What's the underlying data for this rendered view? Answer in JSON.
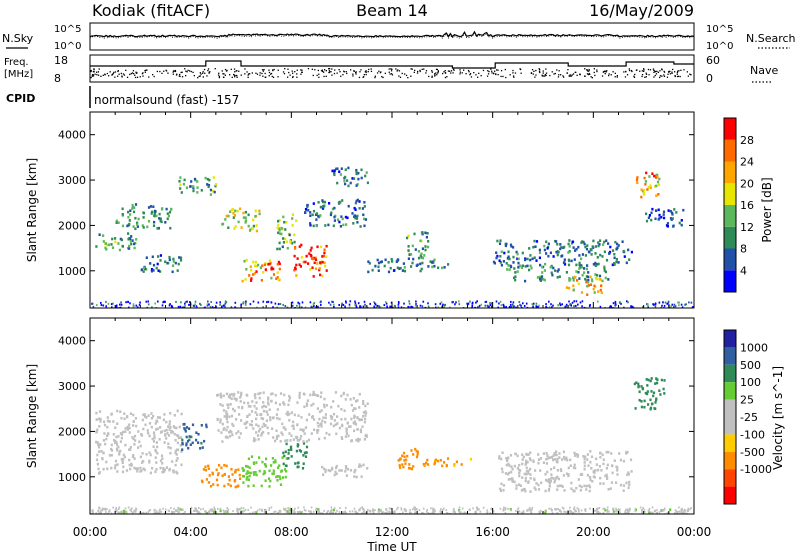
{
  "header": {
    "title_left": "Kodiak (fitACF)",
    "title_center": "Beam 14",
    "title_right": "16/May/2009"
  },
  "strip_nsky": {
    "left_label": "N.Sky",
    "right_label": "N.Search",
    "y_ticks": [
      "10^5",
      "10^0"
    ],
    "y_ticks_right": [
      "10^5",
      "10^0"
    ]
  },
  "strip_freq": {
    "left_label_1": "Freq.",
    "left_label_2": "[MHz]",
    "right_label": "Nave",
    "y_ticks": [
      "18",
      "8"
    ],
    "y_ticks_right": [
      "60",
      "0"
    ]
  },
  "cpid": {
    "label": "CPID",
    "value": "normalsound (fast) -157"
  },
  "colors": {
    "power_scale": [
      "#0000ff",
      "#2050a8",
      "#2e8b57",
      "#5cb85c",
      "#e6e600",
      "#ffa500",
      "#ff6a00",
      "#ff0000"
    ],
    "velocity_scale": [
      "#2020a0",
      "#3060a0",
      "#2e8b57",
      "#66cc33",
      "#c0c0c0",
      "#c0c0c0",
      "#ffcc00",
      "#ff8c00",
      "#ff4500",
      "#ff0000"
    ]
  },
  "chart_data": [
    {
      "type": "heatmap",
      "name_hint": "power",
      "xlabel": "",
      "ylabel": "Slant Range [km]",
      "xlim": [
        0,
        24
      ],
      "ylim": [
        180,
        4500
      ],
      "y_ticks": [
        1000,
        2000,
        3000,
        4000
      ],
      "colorbar": {
        "label": "Power [dB]",
        "range": [
          0,
          32
        ],
        "ticks": [
          4,
          8,
          12,
          16,
          20,
          24,
          28
        ]
      },
      "features": [
        {
          "t0": 0.2,
          "t1": 1.8,
          "r0": 1450,
          "r1": 1850,
          "value": 12
        },
        {
          "t0": 1.0,
          "t1": 3.2,
          "r0": 1950,
          "r1": 2500,
          "value": 10
        },
        {
          "t0": 2.0,
          "t1": 3.6,
          "r0": 1000,
          "r1": 1400,
          "value": 8
        },
        {
          "t0": 3.5,
          "t1": 5.0,
          "r0": 2700,
          "r1": 3100,
          "value": 12
        },
        {
          "t0": 5.2,
          "t1": 6.7,
          "r0": 1900,
          "r1": 2400,
          "value": 16
        },
        {
          "t0": 6.0,
          "t1": 7.6,
          "r0": 800,
          "r1": 1300,
          "value": 24
        },
        {
          "t0": 7.4,
          "t1": 8.2,
          "r0": 1500,
          "r1": 2300,
          "value": 14
        },
        {
          "t0": 8.0,
          "t1": 9.4,
          "r0": 900,
          "r1": 1600,
          "value": 28
        },
        {
          "t0": 8.5,
          "t1": 11.0,
          "r0": 2000,
          "r1": 2600,
          "value": 8
        },
        {
          "t0": 9.5,
          "t1": 11.0,
          "r0": 2900,
          "r1": 3300,
          "value": 8
        },
        {
          "t0": 11.0,
          "t1": 14.2,
          "r0": 1000,
          "r1": 1300,
          "value": 8
        },
        {
          "t0": 12.5,
          "t1": 13.4,
          "r0": 1300,
          "r1": 1900,
          "value": 12
        },
        {
          "t0": 16.0,
          "t1": 21.5,
          "r0": 1150,
          "r1": 1700,
          "value": 8
        },
        {
          "t0": 16.5,
          "t1": 20.6,
          "r0": 800,
          "r1": 1150,
          "value": 10
        },
        {
          "t0": 18.8,
          "t1": 20.3,
          "r0": 500,
          "r1": 900,
          "value": 20
        },
        {
          "t0": 21.6,
          "t1": 22.6,
          "r0": 2600,
          "r1": 3200,
          "value": 22
        },
        {
          "t0": 22.0,
          "t1": 23.6,
          "r0": 2000,
          "r1": 2400,
          "value": 6
        }
      ]
    },
    {
      "type": "heatmap",
      "name_hint": "velocity",
      "xlabel": "Time UT",
      "ylabel": "Slant Range [km]",
      "xlim": [
        0,
        24
      ],
      "ylim": [
        180,
        4500
      ],
      "x_ticks": [
        "00:00",
        "04:00",
        "08:00",
        "12:00",
        "16:00",
        "20:00",
        "00:00"
      ],
      "y_ticks": [
        1000,
        2000,
        3000,
        4000
      ],
      "colorbar": {
        "label": "Velocity [m s^-1]",
        "ticks": [
          "1000",
          "500",
          "100",
          "25",
          "-25",
          "-100",
          "-500",
          "-1000"
        ]
      },
      "features": [
        {
          "t0": 0.2,
          "t1": 3.6,
          "r0": 1100,
          "r1": 2500,
          "value": 0
        },
        {
          "t0": 3.6,
          "t1": 4.6,
          "r0": 1600,
          "r1": 2200,
          "value": 600
        },
        {
          "t0": 4.4,
          "t1": 6.0,
          "r0": 800,
          "r1": 1300,
          "value": -150
        },
        {
          "t0": 6.0,
          "t1": 7.8,
          "r0": 800,
          "r1": 1500,
          "value": 60
        },
        {
          "t0": 7.6,
          "t1": 8.6,
          "r0": 1200,
          "r1": 1800,
          "value": 200
        },
        {
          "t0": 5.0,
          "t1": 11.0,
          "r0": 1800,
          "r1": 2900,
          "value": 10
        },
        {
          "t0": 9.0,
          "t1": 11.0,
          "r0": 1000,
          "r1": 1300,
          "value": 0
        },
        {
          "t0": 12.2,
          "t1": 13.0,
          "r0": 1200,
          "r1": 1800,
          "value": -300
        },
        {
          "t0": 13.2,
          "t1": 15.2,
          "r0": 1250,
          "r1": 1450,
          "value": -120
        },
        {
          "t0": 16.2,
          "t1": 21.5,
          "r0": 700,
          "r1": 1600,
          "value": 0
        },
        {
          "t0": 21.6,
          "t1": 22.8,
          "r0": 2500,
          "r1": 3200,
          "value": 150
        },
        {
          "t0": 0.0,
          "t1": 24.0,
          "r0": 180,
          "r1": 320,
          "value": 20
        }
      ]
    }
  ]
}
